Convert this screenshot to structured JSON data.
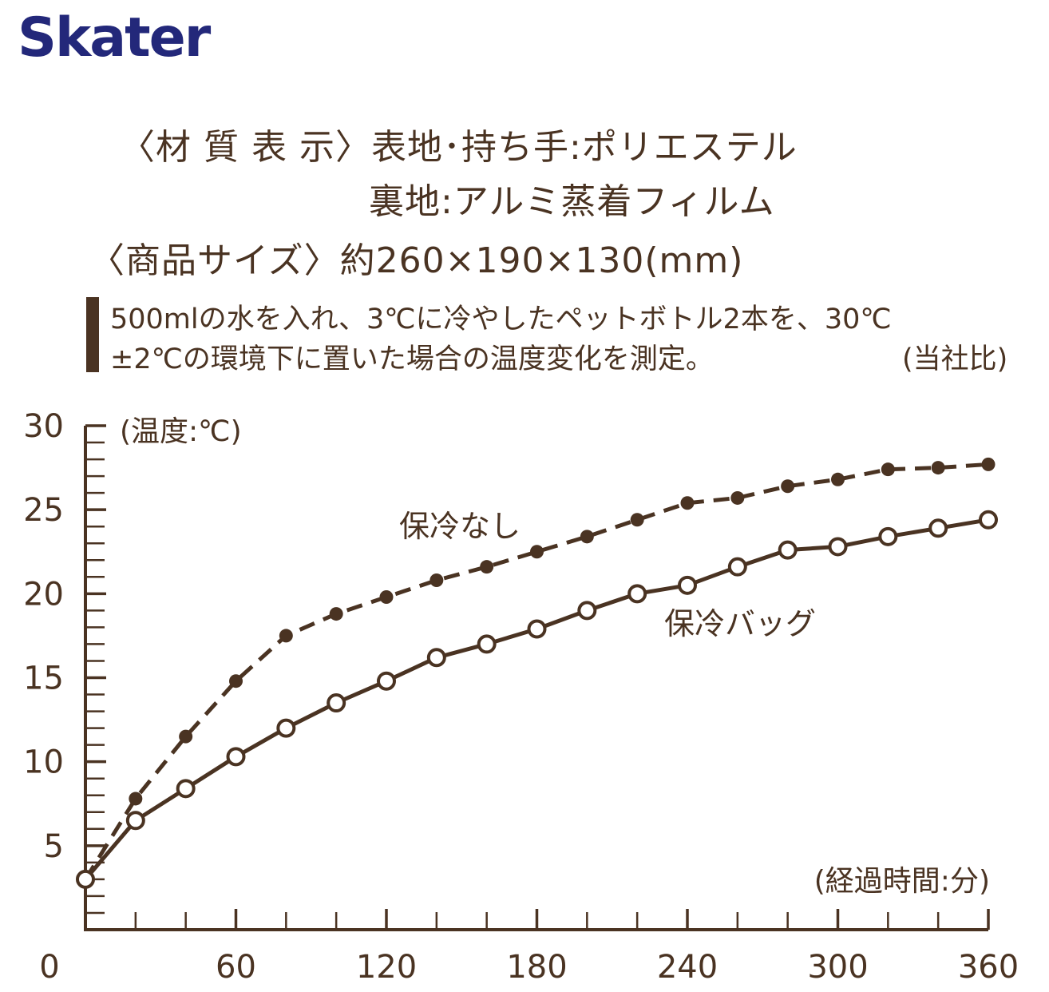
{
  "brand": {
    "logo_text": "Skater",
    "logo_color": "#23287a"
  },
  "specs": {
    "material_line1": "〈材 質 表 示〉表地･持ち手:ポリエステル",
    "material_line2": "裏地:アルミ蒸着フィルム",
    "size_line": "〈商品サイズ〉約260×190×130(mm)"
  },
  "note": {
    "line1": "500mlの水を入れ、3℃に冷やしたペットボトル2本を、30℃",
    "line2": "±2℃の環境下に置いた場合の温度変化を測定。",
    "source": "(当社比)"
  },
  "colors": {
    "accent": "#4a3322"
  },
  "chart_data": {
    "type": "line",
    "ylabel": "(温度:℃)",
    "xlabel": "(経過時間:分)",
    "xlim": [
      0,
      360
    ],
    "ylim": [
      0,
      30
    ],
    "x_ticks": [
      0,
      60,
      120,
      180,
      240,
      300,
      360
    ],
    "y_ticks": [
      5,
      10,
      15,
      20,
      25,
      30
    ],
    "grid": false,
    "series": [
      {
        "name": "保冷なし",
        "style": "dashed-filled-dots",
        "x": [
          0,
          20,
          40,
          60,
          80,
          100,
          120,
          140,
          160,
          180,
          200,
          220,
          240,
          260,
          280,
          300,
          320,
          340,
          360
        ],
        "values": [
          3,
          7.8,
          11.5,
          14.8,
          17.5,
          18.8,
          19.8,
          20.8,
          21.6,
          22.5,
          23.4,
          24.4,
          25.4,
          25.7,
          26.4,
          26.8,
          27.4,
          27.5,
          27.7
        ]
      },
      {
        "name": "保冷バッグ",
        "style": "solid-open-circles",
        "x": [
          0,
          20,
          40,
          60,
          80,
          100,
          120,
          140,
          160,
          180,
          200,
          220,
          240,
          260,
          280,
          300,
          320,
          340,
          360
        ],
        "values": [
          3,
          6.5,
          8.4,
          10.3,
          12.0,
          13.5,
          14.8,
          16.2,
          17.0,
          17.9,
          19.0,
          20.0,
          20.5,
          21.6,
          22.6,
          22.8,
          23.4,
          23.9,
          24.4
        ]
      }
    ]
  }
}
